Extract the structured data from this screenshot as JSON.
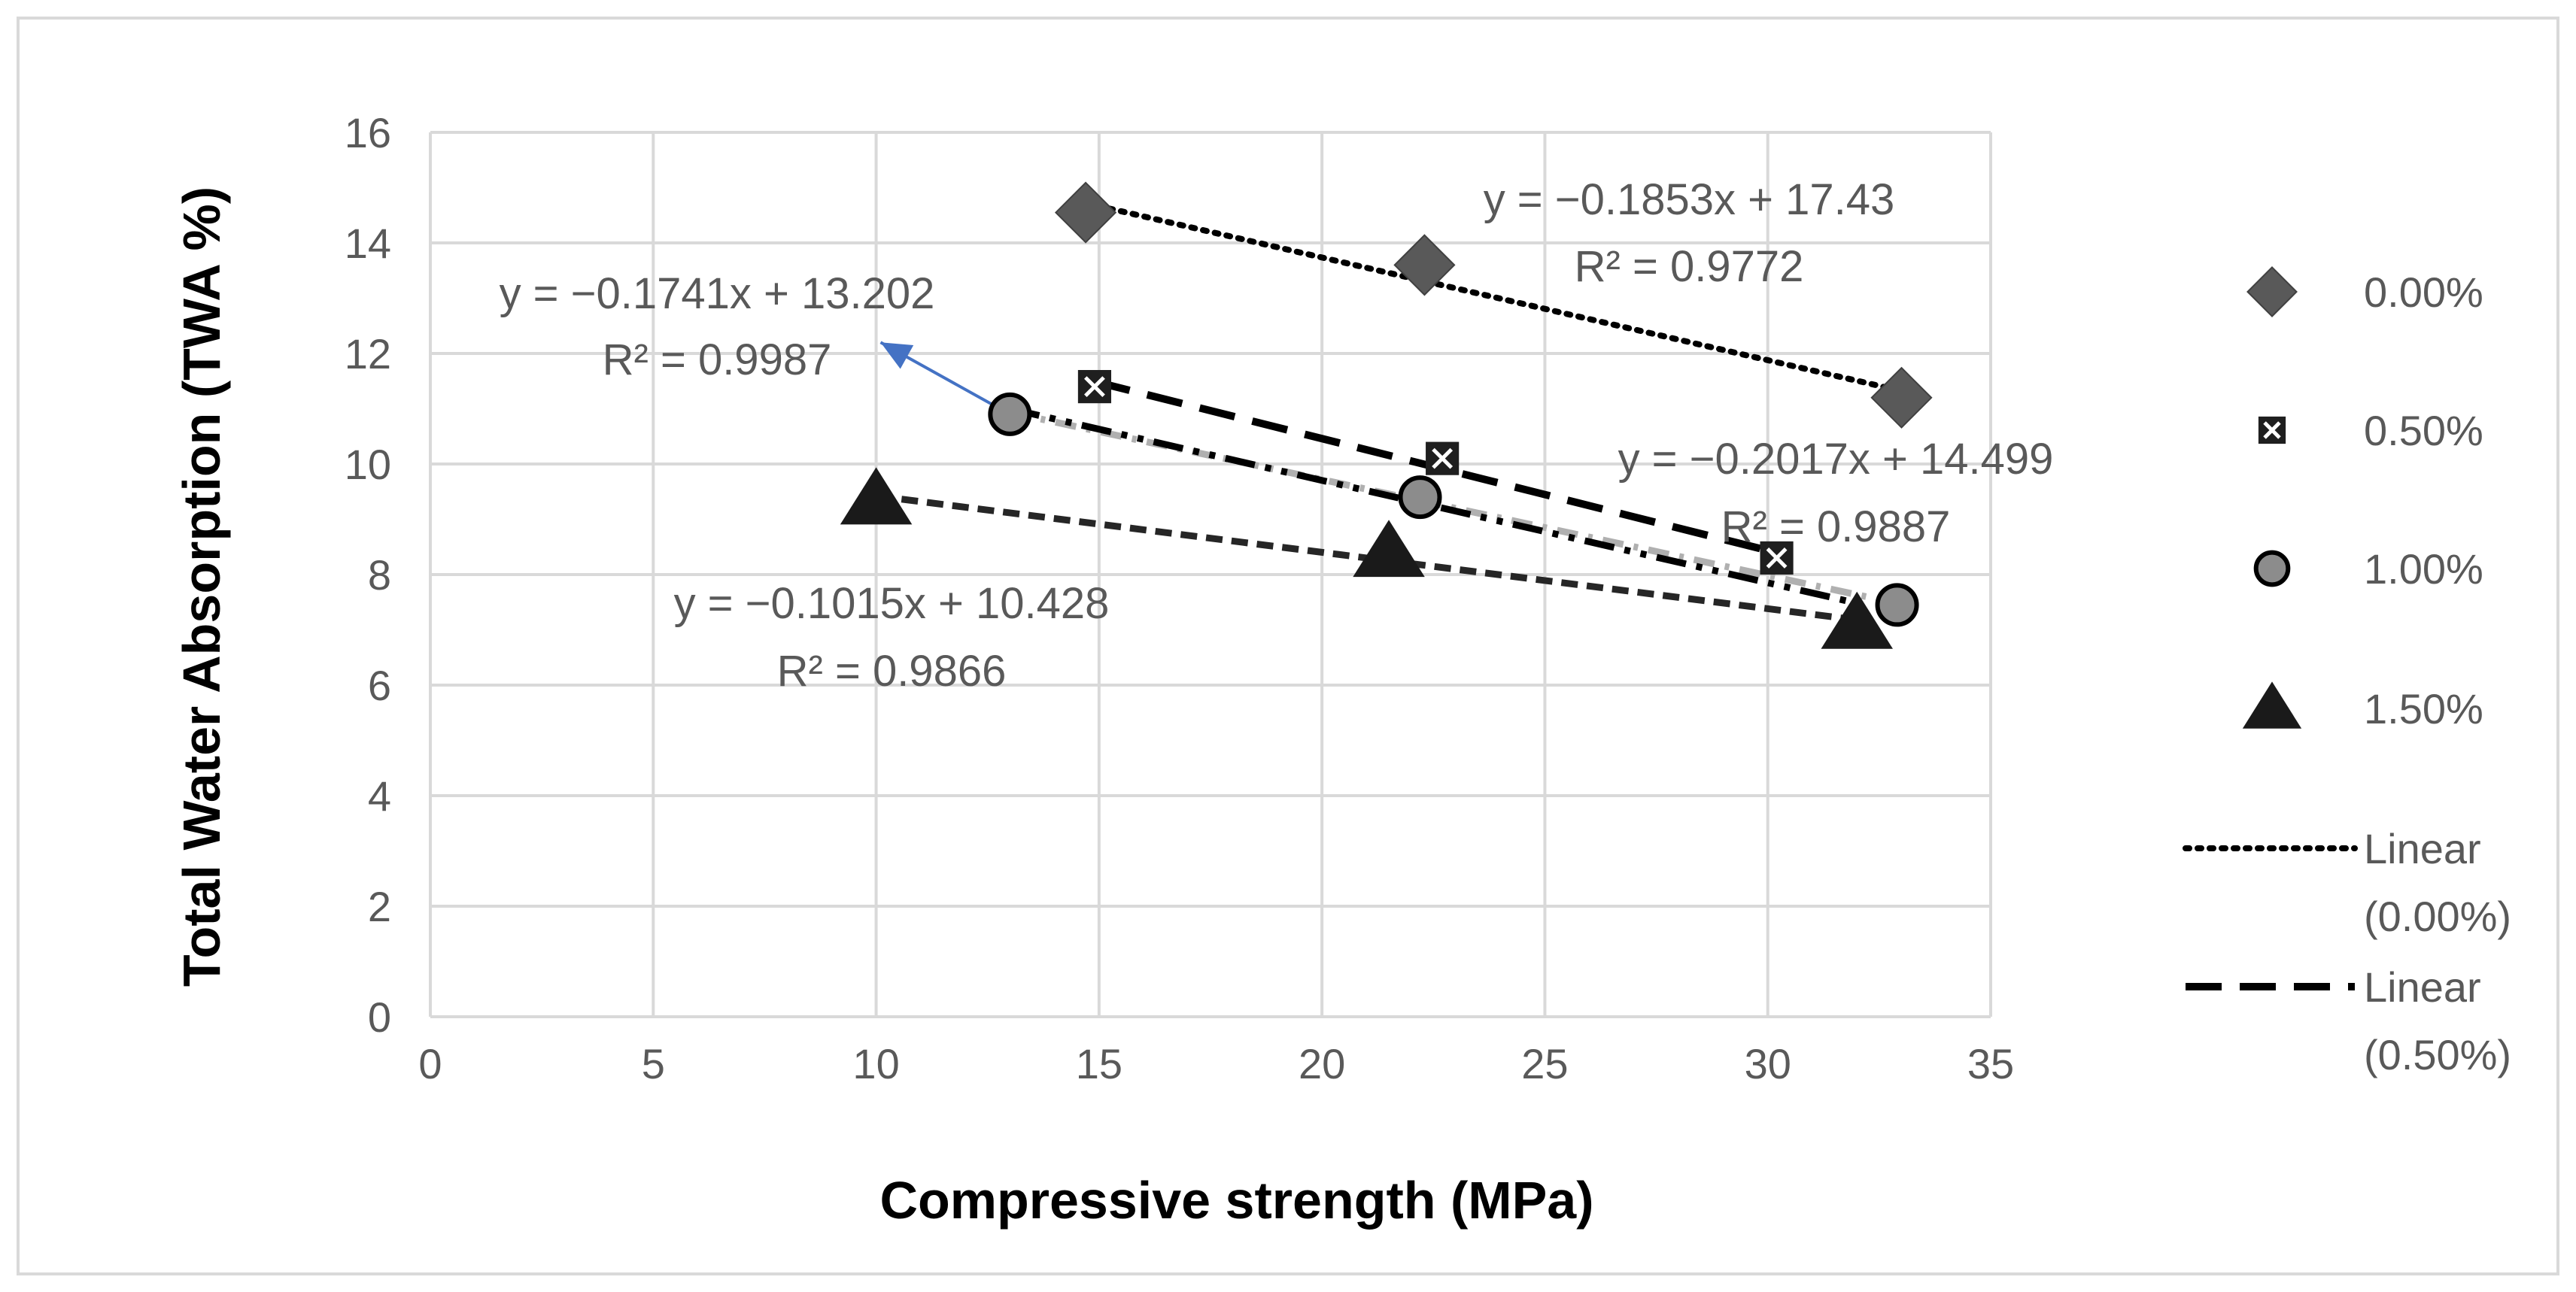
{
  "chart_data": {
    "type": "scatter",
    "title": "",
    "xlabel": "Compressive strength (MPa)",
    "ylabel": "Total Water Absorption (TWA %)",
    "xlim": [
      0,
      35
    ],
    "ylim": [
      0,
      16
    ],
    "x_ticks": [
      "0",
      "5",
      "10",
      "15",
      "20",
      "25",
      "30",
      "35"
    ],
    "y_ticks": [
      "0",
      "2",
      "4",
      "6",
      "8",
      "10",
      "12",
      "14",
      "16"
    ],
    "grid": true,
    "series": [
      {
        "name": "0.00%",
        "marker": "diamond",
        "color": "#595959",
        "x": [
          14.7,
          22.3,
          33.0
        ],
        "y": [
          14.55,
          13.6,
          11.2
        ],
        "trendline": {
          "style": "dotted",
          "color": "#000000",
          "x_range": [
            14.7,
            33.0
          ],
          "equation": "y = −0.1853x + 17.43",
          "r2": "R² = 0.9772"
        }
      },
      {
        "name": "0.50%",
        "marker": "square-x",
        "color": "#3a3a3a",
        "x": [
          14.9,
          22.7,
          30.2
        ],
        "y": [
          11.4,
          10.1,
          8.3
        ],
        "trendline": {
          "style": "dashed",
          "color": "#000000",
          "x_range": [
            14.9,
            30.2
          ],
          "equation": "y = −0.2017x + 14.499",
          "r2": "R² = 0.9887"
        }
      },
      {
        "name": "1.00%",
        "marker": "circle",
        "color": "#8c8c8c",
        "x": [
          13.0,
          22.2,
          32.9
        ],
        "y": [
          10.9,
          9.4,
          7.45
        ],
        "trendline": {
          "style": "dash-dot",
          "color": "#b0b0b0",
          "x_range": [
            13.0,
            32.9
          ],
          "equation": "y = −0.1741x + 13.202",
          "r2": "R² = 0.9987"
        }
      },
      {
        "name": "1.50%",
        "marker": "triangle",
        "color": "#1a1a1a",
        "x": [
          10.0,
          21.5,
          32.0
        ],
        "y": [
          9.35,
          8.4,
          7.1
        ],
        "trendline": {
          "style": "short-dash",
          "color": "#262626",
          "x_range": [
            10.0,
            32.0
          ],
          "equation": "y = −0.1015x + 10.428",
          "r2": "R² = 0.9866"
        }
      }
    ],
    "extra_lines": [
      {
        "name": "dash-dot-black",
        "style": "dash-dot-dot",
        "color": "#000000",
        "x": [
          13.0,
          31.9
        ],
        "y": [
          11.0,
          7.5
        ]
      }
    ],
    "arrow": {
      "from": [
        13.0,
        10.9
      ],
      "to": [
        10.1,
        12.2
      ],
      "color": "#4472c4"
    },
    "legend": {
      "position": "right",
      "items": [
        {
          "label": "0.00%",
          "kind": "marker",
          "marker": "diamond",
          "color": "#595959"
        },
        {
          "label": "0.50%",
          "kind": "marker",
          "marker": "square-x",
          "color": "#3a3a3a"
        },
        {
          "label": "1.00%",
          "kind": "marker",
          "marker": "circle",
          "color": "#8c8c8c"
        },
        {
          "label": "1.50%",
          "kind": "marker",
          "marker": "triangle",
          "color": "#1a1a1a"
        },
        {
          "label_line1": "Linear",
          "label_line2": "(0.00%)",
          "kind": "line",
          "style": "dotted",
          "color": "#000000"
        },
        {
          "label_line1": "Linear",
          "label_line2": "(0.50%)",
          "kind": "line",
          "style": "dashed",
          "color": "#000000"
        }
      ]
    }
  }
}
